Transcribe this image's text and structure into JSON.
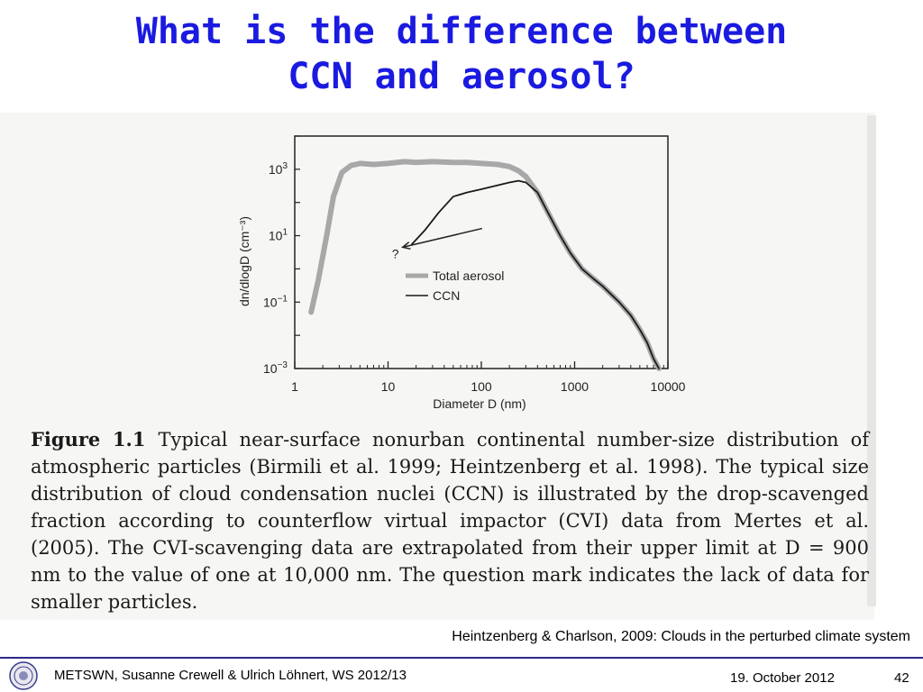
{
  "slide": {
    "title_line1": "What is the difference between",
    "title_line2": "CCN and aerosol?",
    "citation": "Heintzenberg & Charlson, 2009: Clouds in the perturbed climate system",
    "footer_left": "METSWN, Susanne Crewell & Ulrich Löhnert,  WS 2012/13",
    "footer_date": "19. October 2012",
    "page_number": "42"
  },
  "caption": {
    "label": "Figure 1.1",
    "line1": "Typical near-surface nonurban continental number-size distribution of",
    "line2": "atmospheric particles (Birmili et al. 1999; Heintzenberg et al. 1998). The typical size",
    "line3": "distribution of cloud condensation nuclei (CCN) is illustrated by the drop-scavenged",
    "line4": "fraction according to counterflow virtual impactor (CVI) data from Mertes et al.",
    "line5": "(2005). The CVI-scavenging data are extrapolated from their upper limit at D = 900",
    "line6": "nm to the value of one at 10,000 nm. The question mark indicates the lack of data for",
    "line7": "smaller particles."
  },
  "chart_data": {
    "type": "line",
    "xlabel": "Diameter D  (nm)",
    "ylabel": "dn/dlogD (cm⁻³)",
    "xscale": "log",
    "yscale": "log",
    "xlim": [
      1,
      10000
    ],
    "ylim": [
      0.001,
      10000
    ],
    "x_ticks": [
      {
        "value": 1,
        "label": "1"
      },
      {
        "value": 10,
        "label": "10"
      },
      {
        "value": 100,
        "label": "100"
      },
      {
        "value": 1000,
        "label": "1000"
      },
      {
        "value": 10000,
        "label": "10000"
      }
    ],
    "y_ticks": [
      {
        "value": 0.001,
        "base": "10",
        "exp": "−3"
      },
      {
        "value": 0.1,
        "base": "10",
        "exp": "−1"
      },
      {
        "value": 10,
        "base": "10",
        "exp": "1"
      },
      {
        "value": 1000,
        "base": "10",
        "exp": "3"
      }
    ],
    "legend_position": "center-right",
    "annotation": {
      "text": "?",
      "x": 12,
      "y": 3.5,
      "arrow_to_x": 17,
      "arrow_to_y": 5.5
    },
    "series": [
      {
        "name": "Total aerosol",
        "color": "#a8a8a8",
        "style": "thick-gray",
        "x": [
          1.5,
          1.8,
          2.2,
          2.6,
          3.2,
          4,
          5,
          7,
          10,
          15,
          20,
          30,
          50,
          70,
          100,
          150,
          200,
          250,
          300,
          400,
          500,
          700,
          900,
          1200,
          1600,
          2000,
          3000,
          4000,
          5000,
          6000,
          7000,
          8000
        ],
        "y": [
          0.05,
          0.5,
          10,
          150,
          800,
          1300,
          1500,
          1400,
          1500,
          1700,
          1600,
          1700,
          1600,
          1600,
          1500,
          1400,
          1200,
          900,
          600,
          200,
          60,
          10,
          3,
          1,
          0.5,
          0.3,
          0.1,
          0.04,
          0.015,
          0.006,
          0.002,
          0.001
        ]
      },
      {
        "name": "CCN",
        "color": "#1a1a1a",
        "style": "thin-black",
        "x": [
          18,
          25,
          35,
          50,
          70,
          100,
          150,
          200,
          250,
          300,
          400,
          500,
          700,
          900,
          1200,
          1600,
          2000,
          3000,
          4000,
          5000,
          6000,
          7000,
          8000
        ],
        "y": [
          5.5,
          15,
          50,
          150,
          200,
          250,
          330,
          400,
          450,
          400,
          200,
          60,
          10,
          3,
          1,
          0.5,
          0.3,
          0.1,
          0.04,
          0.015,
          0.006,
          0.002,
          0.001
        ]
      }
    ]
  },
  "colors": {
    "title": "#1a1ae0",
    "footer_line": "#2a2a8a",
    "scan_background": "#f6f6f4"
  }
}
